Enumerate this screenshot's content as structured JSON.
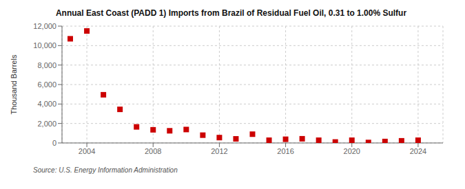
{
  "chart_data": {
    "type": "scatter",
    "title": "Annual East Coast (PADD 1) Imports from Brazil of Residual Fuel Oil, 0.31 to 1.00% Sulfur",
    "ylabel": "Thousand Barrels",
    "source": "Source: U.S. Energy Information Administration",
    "x": [
      2003,
      2004,
      2005,
      2006,
      2007,
      2008,
      2009,
      2010,
      2011,
      2012,
      2013,
      2014,
      2015,
      2016,
      2017,
      2018,
      2019,
      2020,
      2021,
      2022,
      2023,
      2024
    ],
    "values": [
      10700,
      11500,
      4950,
      3450,
      1650,
      1350,
      1250,
      1380,
      800,
      550,
      420,
      900,
      280,
      380,
      430,
      280,
      100,
      280,
      50,
      150,
      220,
      280
    ],
    "color": "#cc0000",
    "marker": "square",
    "xlim": [
      2002.5,
      2025.5
    ],
    "ylim": [
      0,
      12000
    ],
    "xticks": [
      2004,
      2008,
      2012,
      2016,
      2020,
      2024
    ],
    "yticks": [
      0,
      {
        "value": 2000,
        "label": "2,000"
      },
      {
        "value": 4000,
        "label": "4,000"
      },
      {
        "value": 6000,
        "label": "6,000"
      },
      {
        "value": 8000,
        "label": "8,000"
      },
      {
        "value": 10000,
        "label": "10,000"
      },
      {
        "value": 12000,
        "label": "12,000"
      }
    ],
    "grid": true
  }
}
